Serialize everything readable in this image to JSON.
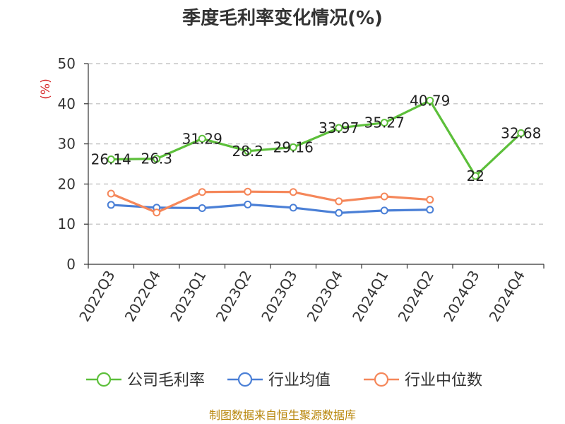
{
  "chart_data": {
    "type": "line",
    "title": "季度毛利率变化情况(%)",
    "ylabel": "(%)",
    "categories": [
      "2022Q3",
      "2022Q4",
      "2023Q1",
      "2023Q2",
      "2023Q3",
      "2023Q4",
      "2024Q1",
      "2024Q2",
      "2024Q3",
      "2024Q4"
    ],
    "ylim": [
      0,
      50
    ],
    "yticks": [
      0,
      10,
      20,
      30,
      40,
      50
    ],
    "grid": true,
    "legend_position": "bottom",
    "series": [
      {
        "name": "公司毛利率",
        "color": "#5cbf3a",
        "values": [
          26.14,
          26.3,
          31.29,
          28.2,
          29.16,
          33.97,
          35.27,
          40.79,
          22,
          32.68
        ],
        "labels": [
          "26.14",
          "26.3",
          "31.29",
          "28.2",
          "29.16",
          "33.97",
          "35.27",
          "40.79",
          "22",
          "32.68"
        ]
      },
      {
        "name": "行业均值",
        "color": "#4a7fd6",
        "values": [
          14.8,
          14.1,
          14.0,
          14.9,
          14.1,
          12.8,
          13.4,
          13.6,
          null,
          null
        ]
      },
      {
        "name": "行业中位数",
        "color": "#f5875a",
        "values": [
          17.6,
          12.9,
          18.0,
          18.1,
          18.0,
          15.7,
          16.9,
          16.1,
          null,
          null
        ]
      }
    ]
  },
  "source": "制图数据来自恒生聚源数据库"
}
